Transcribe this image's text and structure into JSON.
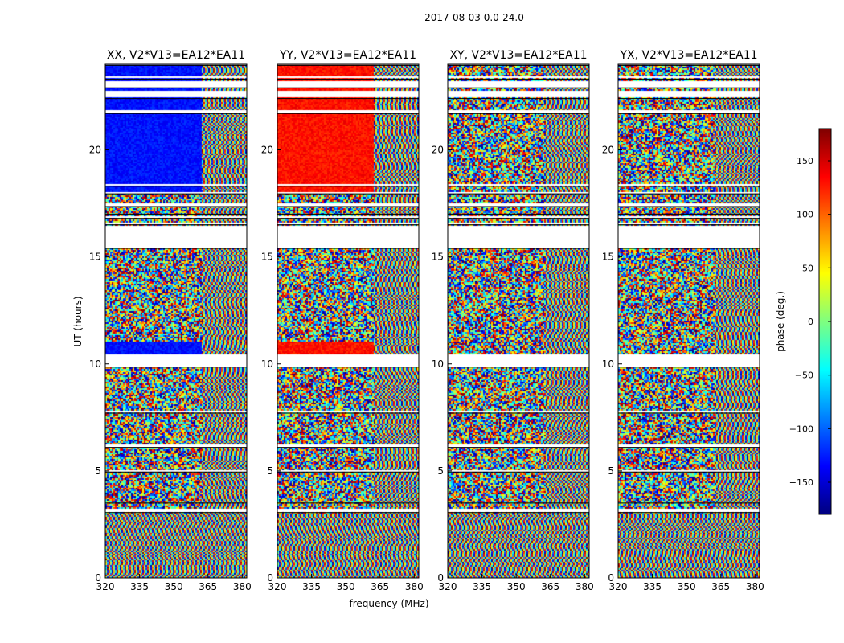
{
  "chart_data": {
    "type": "heatmap",
    "suptitle": "2017-08-03 0.0-24.0",
    "xlabel": "frequency (MHz)",
    "ylabel": "UT (hours)",
    "xlim": [
      320,
      382
    ],
    "ylim": [
      0,
      24
    ],
    "xticks": [
      "320",
      "335",
      "350",
      "365",
      "380"
    ],
    "yticks": [
      "0",
      "5",
      "10",
      "15",
      "20"
    ],
    "panels": [
      {
        "title": "XX, V2*V13=EA12*EA11",
        "pol": "XX"
      },
      {
        "title": "YY, V2*V13=EA12*EA11",
        "pol": "YY"
      },
      {
        "title": "XY, V2*V13=EA12*EA11",
        "pol": "XY"
      },
      {
        "title": "YX, V2*V13=EA12*EA11",
        "pol": "YX"
      }
    ],
    "colorbar": {
      "label": "phase (deg.)",
      "range": [
        -180,
        180
      ],
      "ticks": [
        "150",
        "100",
        "50",
        "0",
        "−50",
        "−100",
        "−150"
      ],
      "tick_values": [
        150,
        100,
        50,
        0,
        -50,
        -100,
        -150
      ],
      "colormap": [
        "#00007f",
        "#0000ff",
        "#007fff",
        "#00ffff",
        "#7fff7f",
        "#ffff00",
        "#ff7f00",
        "#ff0000",
        "#7f0000"
      ]
    },
    "flagged_hours": [
      [
        3.05,
        3.2
      ],
      [
        3.5,
        3.55
      ],
      [
        4.95,
        5.0
      ],
      [
        6.1,
        6.2
      ],
      [
        7.7,
        7.8
      ],
      [
        9.85,
        10.4
      ],
      [
        15.4,
        16.4
      ],
      [
        16.5,
        16.6
      ],
      [
        16.8,
        16.9
      ],
      [
        17.0,
        17.05
      ],
      [
        17.35,
        17.45
      ],
      [
        17.95,
        18.0
      ],
      [
        18.3,
        18.35
      ],
      [
        21.7,
        21.85
      ],
      [
        22.4,
        22.7
      ],
      [
        22.9,
        23.2
      ],
      [
        23.3,
        23.4
      ],
      [
        23.95,
        24.0
      ]
    ]
  }
}
